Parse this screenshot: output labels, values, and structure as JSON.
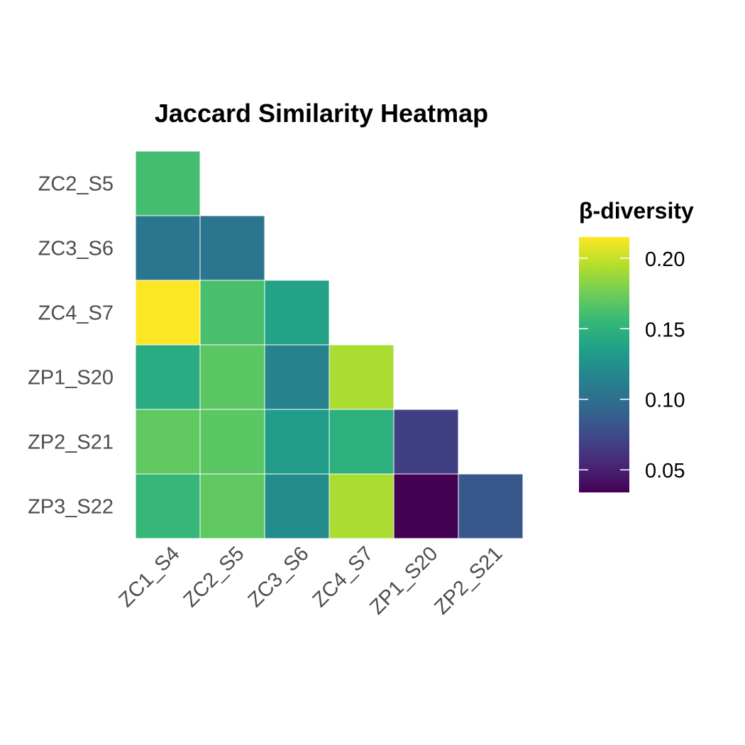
{
  "chart_data": {
    "type": "heatmap",
    "title": "Jaccard Similarity Heatmap",
    "subtitle": "",
    "xlabel": "",
    "ylabel": "",
    "x_categories": [
      "ZC1_S4",
      "ZC2_S5",
      "ZC3_S6",
      "ZC4_S7",
      "ZP1_S20",
      "ZP2_S21"
    ],
    "y_categories": [
      "ZC2_S5",
      "ZC3_S6",
      "ZC4_S7",
      "ZP1_S20",
      "ZP2_S21",
      "ZP3_S22"
    ],
    "cells": [
      {
        "x": "ZC1_S4",
        "y": "ZC2_S5",
        "value": 0.16
      },
      {
        "x": "ZC1_S4",
        "y": "ZC3_S6",
        "value": 0.105
      },
      {
        "x": "ZC2_S5",
        "y": "ZC3_S6",
        "value": 0.105
      },
      {
        "x": "ZC1_S4",
        "y": "ZC4_S7",
        "value": 0.215
      },
      {
        "x": "ZC2_S5",
        "y": "ZC4_S7",
        "value": 0.162
      },
      {
        "x": "ZC3_S6",
        "y": "ZC4_S7",
        "value": 0.138
      },
      {
        "x": "ZC1_S4",
        "y": "ZP1_S20",
        "value": 0.145
      },
      {
        "x": "ZC2_S5",
        "y": "ZP1_S20",
        "value": 0.168
      },
      {
        "x": "ZC3_S6",
        "y": "ZP1_S20",
        "value": 0.115
      },
      {
        "x": "ZC4_S7",
        "y": "ZP1_S20",
        "value": 0.192
      },
      {
        "x": "ZC1_S4",
        "y": "ZP2_S21",
        "value": 0.17
      },
      {
        "x": "ZC2_S5",
        "y": "ZP2_S21",
        "value": 0.168
      },
      {
        "x": "ZC3_S6",
        "y": "ZP2_S21",
        "value": 0.133
      },
      {
        "x": "ZC4_S7",
        "y": "ZP2_S21",
        "value": 0.148
      },
      {
        "x": "ZP1_S20",
        "y": "ZP2_S21",
        "value": 0.068
      },
      {
        "x": "ZC1_S4",
        "y": "ZP3_S22",
        "value": 0.155
      },
      {
        "x": "ZC2_S5",
        "y": "ZP3_S22",
        "value": 0.17
      },
      {
        "x": "ZC3_S6",
        "y": "ZP3_S22",
        "value": 0.122
      },
      {
        "x": "ZC4_S7",
        "y": "ZP3_S22",
        "value": 0.192
      },
      {
        "x": "ZP1_S20",
        "y": "ZP3_S22",
        "value": 0.034
      },
      {
        "x": "ZP2_S21",
        "y": "ZP3_S22",
        "value": 0.083
      }
    ],
    "legend": {
      "title": "β-diversity",
      "position": "right",
      "ticks": [
        0.05,
        0.1,
        0.15,
        0.2
      ],
      "tick_labels": [
        "0.05",
        "0.10",
        "0.15",
        "0.20"
      ],
      "range": [
        0.034,
        0.215
      ]
    },
    "colormap": "viridis",
    "viridis_stops": [
      "#440154",
      "#482878",
      "#3E4A89",
      "#31688E",
      "#26828E",
      "#1F9E89",
      "#35B779",
      "#6DCD59",
      "#B4DE2C",
      "#FDE725"
    ],
    "cell_border_color": "#ffffff",
    "grid": false
  }
}
